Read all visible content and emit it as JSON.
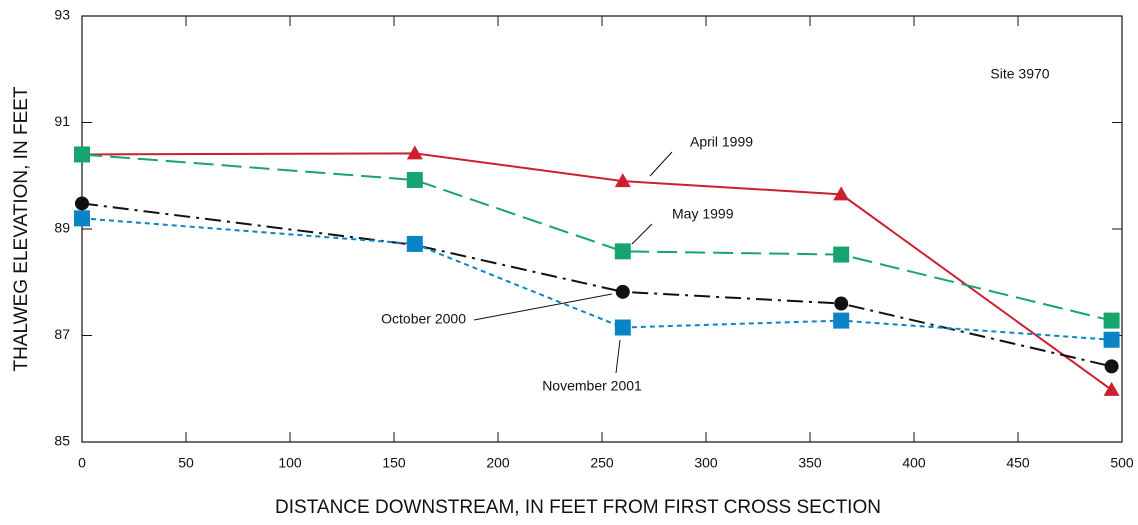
{
  "chart_data": {
    "type": "line",
    "xlabel": "DISTANCE DOWNSTREAM, IN FEET FROM FIRST CROSS SECTION",
    "ylabel": "THALWEG ELEVATION, IN FEET",
    "x": [
      0,
      160,
      260,
      365,
      495
    ],
    "series": [
      {
        "name": "April 1999",
        "color": "#cc1f2f",
        "marker": "triangle",
        "dash": "solid",
        "values": [
          90.4,
          90.42,
          89.9,
          89.65,
          85.98
        ]
      },
      {
        "name": "May 1999",
        "color": "#18a46e",
        "marker": "square",
        "dash": "long-dash",
        "values": [
          90.4,
          89.92,
          88.58,
          88.52,
          87.28
        ]
      },
      {
        "name": "October 2000",
        "color": "#111111",
        "marker": "circle",
        "dash": "dash-dot",
        "values": [
          89.48,
          88.7,
          87.82,
          87.6,
          86.42
        ]
      },
      {
        "name": "November 2001",
        "color": "#0a84c6",
        "marker": "square",
        "dash": "short-dash",
        "values": [
          89.2,
          88.72,
          87.15,
          87.28,
          86.92
        ]
      }
    ],
    "annotations": [
      "Site 3970"
    ],
    "xlim": [
      0,
      500
    ],
    "xticks": [
      0,
      50,
      100,
      150,
      200,
      250,
      300,
      350,
      400,
      450,
      500
    ],
    "ylim": [
      85,
      93
    ],
    "yticks": [
      85,
      87,
      89,
      91,
      93
    ],
    "grid": false
  }
}
